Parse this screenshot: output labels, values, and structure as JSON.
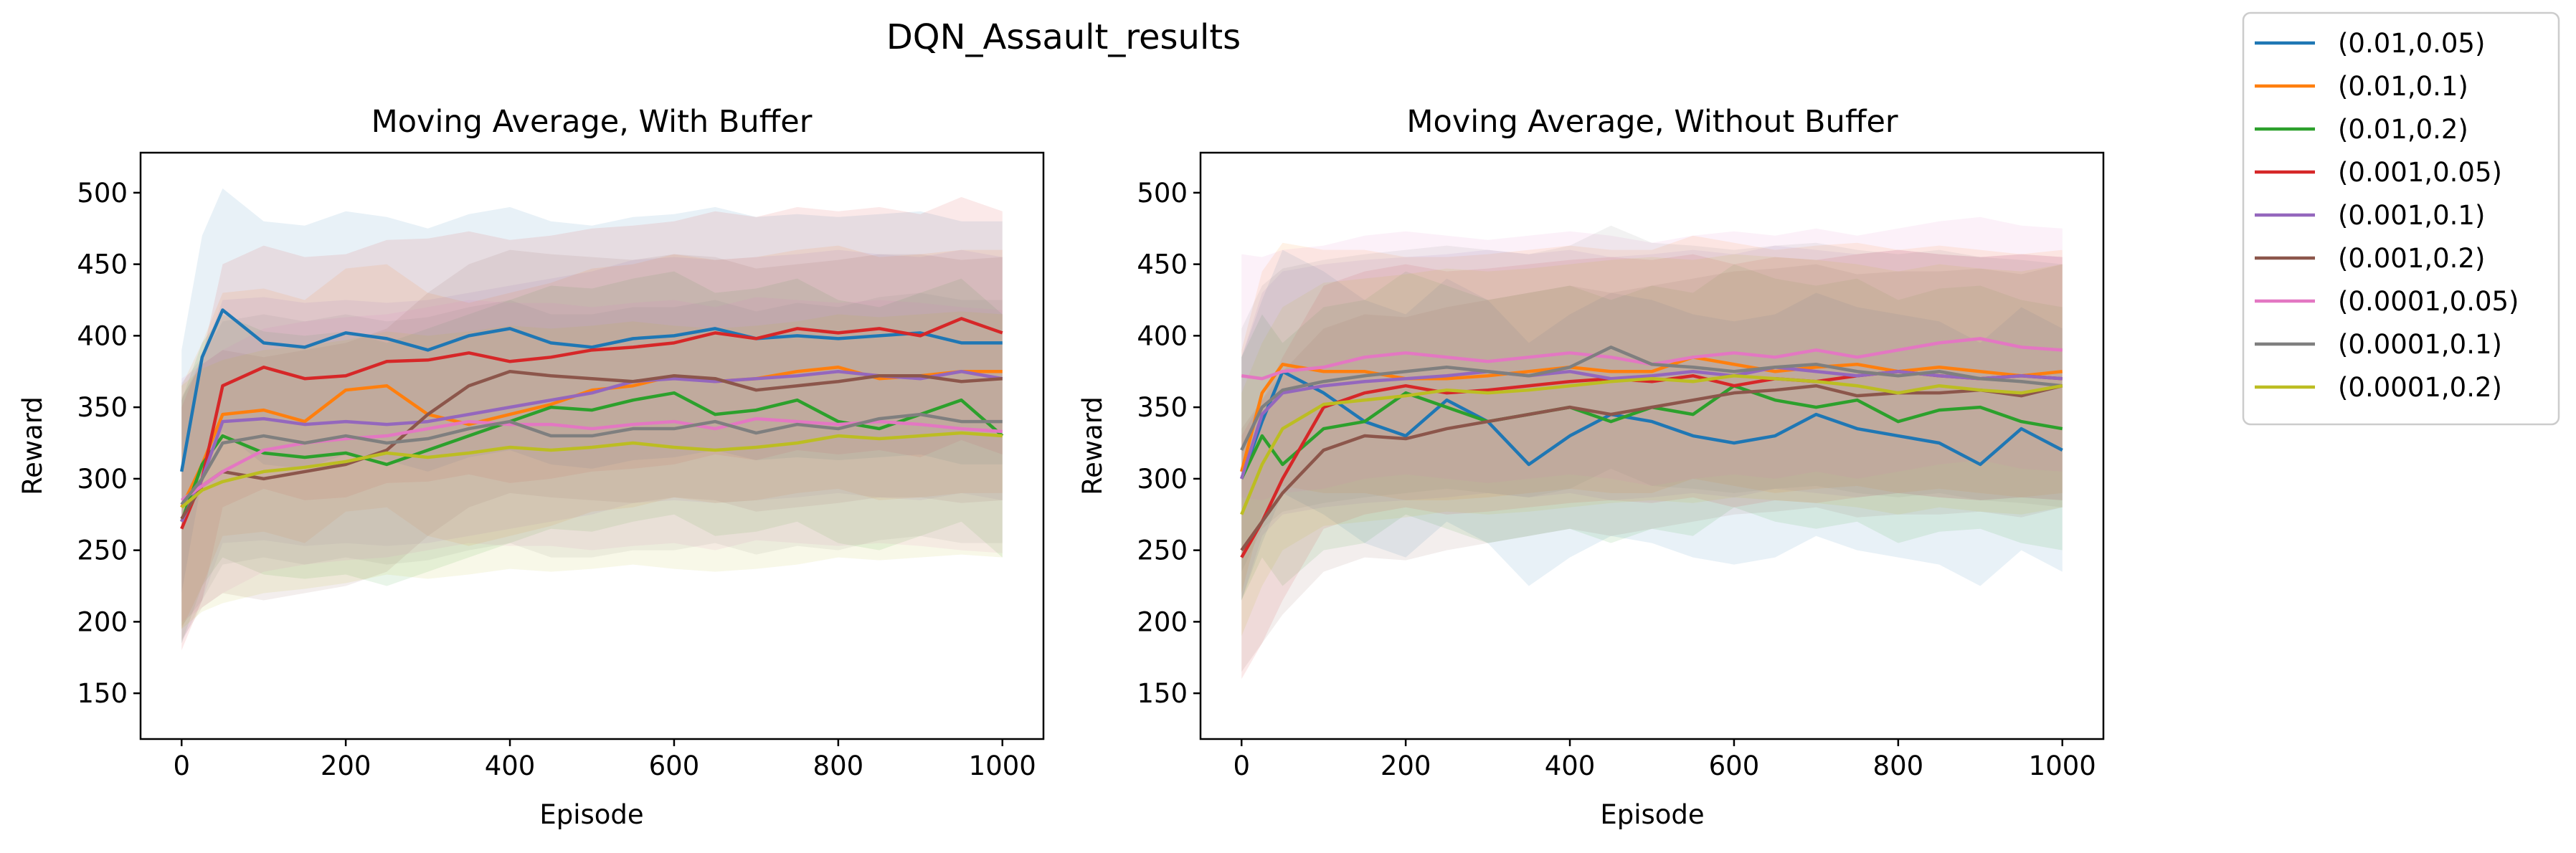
{
  "suptitle": "DQN_Assault_results",
  "legend": [
    "(0.01,0.05)",
    "(0.01,0.1)",
    "(0.01,0.2)",
    "(0.001,0.05)",
    "(0.001,0.1)",
    "(0.001,0.2)",
    "(0.0001,0.05)",
    "(0.0001,0.1)",
    "(0.0001,0.2)"
  ],
  "colors": [
    "#1f77b4",
    "#ff7f0e",
    "#2ca02c",
    "#d62728",
    "#9467bd",
    "#8c564b",
    "#e377c2",
    "#7f7f7f",
    "#bcbd22"
  ],
  "chart_data": [
    {
      "type": "line",
      "title": "Moving Average, With Buffer",
      "xlabel": "Episode",
      "ylabel": "Reward",
      "xlim": [
        -50,
        1050
      ],
      "ylim": [
        118,
        528
      ],
      "xticks": [
        0,
        200,
        400,
        600,
        800,
        1000
      ],
      "yticks": [
        150,
        200,
        250,
        300,
        350,
        400,
        450,
        500
      ],
      "grid": false,
      "band_halfwidth_approx": 85,
      "series": [
        {
          "name": "(0.01,0.05)",
          "x": [
            0,
            25,
            50,
            100,
            150,
            200,
            250,
            300,
            350,
            400,
            450,
            500,
            550,
            600,
            650,
            700,
            750,
            800,
            850,
            900,
            950,
            1000
          ],
          "y": [
            305,
            385,
            418,
            395,
            392,
            402,
            398,
            390,
            400,
            405,
            395,
            392,
            398,
            400,
            405,
            398,
            400,
            398,
            400,
            402,
            395,
            395
          ]
        },
        {
          "name": "(0.01,0.1)",
          "x": [
            0,
            25,
            50,
            100,
            150,
            200,
            250,
            300,
            350,
            400,
            450,
            500,
            550,
            600,
            650,
            700,
            750,
            800,
            850,
            900,
            950,
            1000
          ],
          "y": [
            280,
            310,
            345,
            348,
            340,
            362,
            365,
            345,
            338,
            345,
            352,
            362,
            365,
            372,
            368,
            370,
            375,
            378,
            370,
            372,
            375,
            375
          ]
        },
        {
          "name": "(0.01,0.2)",
          "x": [
            0,
            25,
            50,
            100,
            150,
            200,
            250,
            300,
            350,
            400,
            450,
            500,
            550,
            600,
            650,
            700,
            750,
            800,
            850,
            900,
            950,
            1000
          ],
          "y": [
            270,
            310,
            330,
            318,
            315,
            318,
            310,
            320,
            330,
            340,
            350,
            348,
            355,
            360,
            345,
            348,
            355,
            340,
            335,
            345,
            355,
            330
          ]
        },
        {
          "name": "(0.001,0.05)",
          "x": [
            0,
            25,
            50,
            100,
            150,
            200,
            250,
            300,
            350,
            400,
            450,
            500,
            550,
            600,
            650,
            700,
            750,
            800,
            850,
            900,
            950,
            1000
          ],
          "y": [
            265,
            300,
            365,
            378,
            370,
            372,
            382,
            383,
            388,
            382,
            385,
            390,
            392,
            395,
            402,
            398,
            405,
            402,
            405,
            400,
            412,
            402
          ]
        },
        {
          "name": "(0.001,0.1)",
          "x": [
            0,
            25,
            50,
            100,
            150,
            200,
            250,
            300,
            350,
            400,
            450,
            500,
            550,
            600,
            650,
            700,
            750,
            800,
            850,
            900,
            950,
            1000
          ],
          "y": [
            270,
            300,
            340,
            342,
            338,
            340,
            338,
            340,
            345,
            350,
            355,
            360,
            368,
            370,
            368,
            370,
            372,
            375,
            372,
            370,
            375,
            370
          ]
        },
        {
          "name": "(0.001,0.2)",
          "x": [
            0,
            25,
            50,
            100,
            150,
            200,
            250,
            300,
            350,
            400,
            450,
            500,
            550,
            600,
            650,
            700,
            750,
            800,
            850,
            900,
            950,
            1000
          ],
          "y": [
            272,
            295,
            305,
            300,
            305,
            310,
            320,
            345,
            365,
            375,
            372,
            370,
            368,
            372,
            370,
            362,
            365,
            368,
            372,
            372,
            368,
            370
          ]
        },
        {
          "name": "(0.0001,0.05)",
          "x": [
            0,
            25,
            50,
            100,
            150,
            200,
            250,
            300,
            350,
            400,
            450,
            500,
            550,
            600,
            650,
            700,
            750,
            800,
            850,
            900,
            950,
            1000
          ],
          "y": [
            285,
            295,
            305,
            320,
            325,
            328,
            330,
            335,
            340,
            338,
            338,
            335,
            338,
            340,
            335,
            342,
            340,
            338,
            340,
            338,
            335,
            333
          ]
        },
        {
          "name": "(0.0001,0.1)",
          "x": [
            0,
            25,
            50,
            100,
            150,
            200,
            250,
            300,
            350,
            400,
            450,
            500,
            550,
            600,
            650,
            700,
            750,
            800,
            850,
            900,
            950,
            1000
          ],
          "y": [
            282,
            300,
            325,
            330,
            325,
            330,
            325,
            328,
            335,
            340,
            330,
            330,
            335,
            335,
            340,
            332,
            338,
            335,
            342,
            345,
            340,
            340
          ]
        },
        {
          "name": "(0.0001,0.2)",
          "x": [
            0,
            25,
            50,
            100,
            150,
            200,
            250,
            300,
            350,
            400,
            450,
            500,
            550,
            600,
            650,
            700,
            750,
            800,
            850,
            900,
            950,
            1000
          ],
          "y": [
            280,
            292,
            298,
            305,
            308,
            312,
            318,
            315,
            318,
            322,
            320,
            322,
            325,
            322,
            320,
            322,
            325,
            330,
            328,
            330,
            332,
            330
          ]
        }
      ]
    },
    {
      "type": "line",
      "title": "Moving Average, Without Buffer",
      "xlabel": "Episode",
      "ylabel": "Reward",
      "xlim": [
        -50,
        1050
      ],
      "ylim": [
        118,
        528
      ],
      "xticks": [
        0,
        200,
        400,
        600,
        800,
        1000
      ],
      "yticks": [
        150,
        200,
        250,
        300,
        350,
        400,
        450,
        500
      ],
      "grid": false,
      "band_halfwidth_approx": 85,
      "series": [
        {
          "name": "(0.01,0.05)",
          "x": [
            0,
            25,
            50,
            100,
            150,
            200,
            250,
            300,
            350,
            400,
            450,
            500,
            550,
            600,
            650,
            700,
            750,
            800,
            850,
            900,
            950,
            1000
          ],
          "y": [
            300,
            340,
            375,
            360,
            340,
            330,
            355,
            340,
            310,
            330,
            345,
            340,
            330,
            325,
            330,
            345,
            335,
            330,
            325,
            310,
            335,
            320
          ]
        },
        {
          "name": "(0.01,0.1)",
          "x": [
            0,
            25,
            50,
            100,
            150,
            200,
            250,
            300,
            350,
            400,
            450,
            500,
            550,
            600,
            650,
            700,
            750,
            800,
            850,
            900,
            950,
            1000
          ],
          "y": [
            305,
            360,
            380,
            375,
            375,
            370,
            370,
            372,
            375,
            378,
            375,
            375,
            385,
            380,
            375,
            378,
            380,
            375,
            378,
            375,
            372,
            375
          ]
        },
        {
          "name": "(0.01,0.2)",
          "x": [
            0,
            25,
            50,
            100,
            150,
            200,
            250,
            300,
            350,
            400,
            450,
            500,
            550,
            600,
            650,
            700,
            750,
            800,
            850,
            900,
            950,
            1000
          ],
          "y": [
            300,
            330,
            310,
            335,
            340,
            360,
            350,
            340,
            345,
            350,
            340,
            350,
            345,
            365,
            355,
            350,
            355,
            340,
            348,
            350,
            340,
            335
          ]
        },
        {
          "name": "(0.001,0.05)",
          "x": [
            0,
            25,
            50,
            100,
            150,
            200,
            250,
            300,
            350,
            400,
            450,
            500,
            550,
            600,
            650,
            700,
            750,
            800,
            850,
            900,
            950,
            1000
          ],
          "y": [
            245,
            270,
            300,
            350,
            360,
            365,
            360,
            362,
            365,
            368,
            370,
            368,
            372,
            365,
            370,
            368,
            372,
            375,
            372,
            370,
            372,
            370
          ]
        },
        {
          "name": "(0.001,0.1)",
          "x": [
            0,
            25,
            50,
            100,
            150,
            200,
            250,
            300,
            350,
            400,
            450,
            500,
            550,
            600,
            650,
            700,
            750,
            800,
            850,
            900,
            950,
            1000
          ],
          "y": [
            300,
            345,
            360,
            365,
            368,
            370,
            372,
            375,
            372,
            375,
            370,
            372,
            375,
            372,
            378,
            375,
            372,
            375,
            372,
            370,
            372,
            370
          ]
        },
        {
          "name": "(0.001,0.2)",
          "x": [
            0,
            25,
            50,
            100,
            150,
            200,
            250,
            300,
            350,
            400,
            450,
            500,
            550,
            600,
            650,
            700,
            750,
            800,
            850,
            900,
            950,
            1000
          ],
          "y": [
            250,
            270,
            290,
            320,
            330,
            328,
            335,
            340,
            345,
            350,
            345,
            350,
            355,
            360,
            362,
            365,
            358,
            360,
            360,
            362,
            358,
            365
          ]
        },
        {
          "name": "(0.0001,0.05)",
          "x": [
            0,
            25,
            50,
            100,
            150,
            200,
            250,
            300,
            350,
            400,
            450,
            500,
            550,
            600,
            650,
            700,
            750,
            800,
            850,
            900,
            950,
            1000
          ],
          "y": [
            372,
            370,
            375,
            378,
            385,
            388,
            385,
            382,
            385,
            388,
            385,
            380,
            385,
            388,
            385,
            390,
            385,
            390,
            395,
            398,
            392,
            390
          ]
        },
        {
          "name": "(0.0001,0.1)",
          "x": [
            0,
            25,
            50,
            100,
            150,
            200,
            250,
            300,
            350,
            400,
            450,
            500,
            550,
            600,
            650,
            700,
            750,
            800,
            850,
            900,
            950,
            1000
          ],
          "y": [
            320,
            350,
            362,
            368,
            372,
            375,
            378,
            375,
            372,
            378,
            392,
            380,
            378,
            375,
            378,
            380,
            375,
            372,
            375,
            370,
            368,
            365
          ]
        },
        {
          "name": "(0.0001,0.2)",
          "x": [
            0,
            25,
            50,
            100,
            150,
            200,
            250,
            300,
            350,
            400,
            450,
            500,
            550,
            600,
            650,
            700,
            750,
            800,
            850,
            900,
            950,
            1000
          ],
          "y": [
            275,
            310,
            335,
            352,
            355,
            358,
            362,
            360,
            362,
            365,
            368,
            370,
            368,
            372,
            370,
            368,
            365,
            360,
            365,
            362,
            360,
            365
          ]
        }
      ]
    }
  ]
}
